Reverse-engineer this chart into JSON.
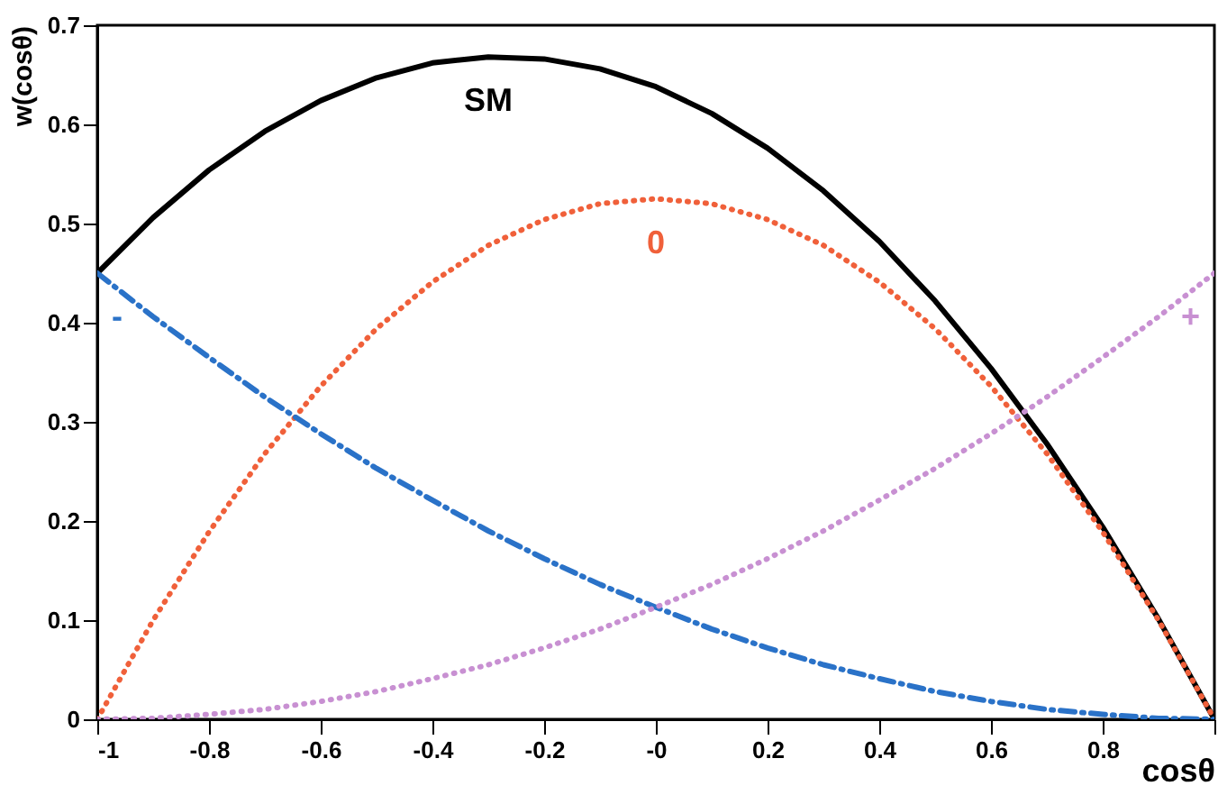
{
  "chart_data": {
    "type": "line",
    "xlabel": "cosθ",
    "ylabel": "w(cosθ)",
    "x": [
      -1,
      -0.9,
      -0.8,
      -0.7,
      -0.6,
      -0.5,
      -0.4,
      -0.3,
      -0.2,
      -0.1,
      0,
      0.1,
      0.2,
      0.3,
      0.4,
      0.5,
      0.6,
      0.7,
      0.8,
      0.9,
      1
    ],
    "series": [
      {
        "name": "SM",
        "color": "#000000",
        "line_style": "solid",
        "values": [
          0.45,
          0.506,
          0.554,
          0.593,
          0.624,
          0.647,
          0.662,
          0.668,
          0.666,
          0.656,
          0.638,
          0.611,
          0.576,
          0.533,
          0.482,
          0.422,
          0.354,
          0.278,
          0.194,
          0.101,
          0
        ]
      },
      {
        "name": "0",
        "color": "#f0603a",
        "line_style": "dotted",
        "values": [
          0,
          0.1,
          0.189,
          0.268,
          0.336,
          0.394,
          0.441,
          0.478,
          0.504,
          0.52,
          0.525,
          0.52,
          0.504,
          0.478,
          0.441,
          0.394,
          0.336,
          0.268,
          0.189,
          0.1,
          0
        ]
      },
      {
        "name": "-",
        "color": "#2a72c8",
        "line_style": "dashed",
        "values": [
          0.45,
          0.406,
          0.365,
          0.325,
          0.288,
          0.253,
          0.221,
          0.19,
          0.162,
          0.136,
          0.113,
          0.091,
          0.072,
          0.055,
          0.041,
          0.028,
          0.018,
          0.01,
          0.005,
          0.001,
          0
        ]
      },
      {
        "name": "+",
        "color": "#c890d2",
        "line_style": "dotted",
        "values": [
          0,
          0.001,
          0.005,
          0.01,
          0.018,
          0.028,
          0.041,
          0.055,
          0.072,
          0.091,
          0.113,
          0.136,
          0.162,
          0.19,
          0.221,
          0.253,
          0.288,
          0.325,
          0.365,
          0.406,
          0.45
        ]
      }
    ],
    "xlim": [
      -1,
      1
    ],
    "ylim": [
      0,
      0.7
    ],
    "xticks": [
      -1,
      -0.8,
      -0.6,
      -0.4,
      -0.2,
      {
        "value": 0,
        "label": "-0"
      },
      0.2,
      0.4,
      0.6,
      0.8,
      {
        "value": 1,
        "label": null
      }
    ],
    "yticks": [
      0,
      0.1,
      0.2,
      0.3,
      0.4,
      0.5,
      0.6,
      0.7
    ],
    "grid": false
  }
}
